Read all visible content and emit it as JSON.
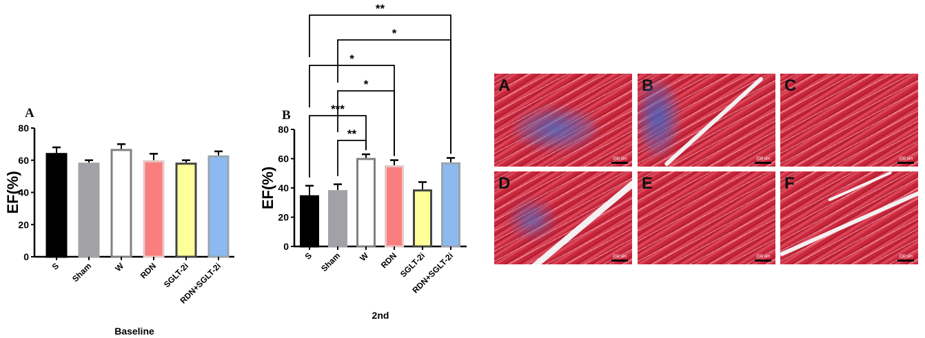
{
  "chart_data": [
    {
      "type": "bar",
      "panel_label": "A",
      "title": "",
      "xlabel": "Baseline",
      "ylabel": "EF(%)",
      "ylim": [
        0,
        80
      ],
      "yticks": [
        0,
        20,
        40,
        60,
        80
      ],
      "categories": [
        "S",
        "Sham",
        "W",
        "RDN",
        "SGLT-2i",
        "RDN+SGLT-2i"
      ],
      "values": [
        64.5,
        58.5,
        67,
        60,
        58.5,
        63
      ],
      "error_upper": [
        68,
        60,
        70,
        64,
        60,
        65.5
      ],
      "colors": [
        "#000000",
        "#a2a2a6",
        "#ffffff",
        "#f97f7f",
        "#ffff99",
        "#8cbaf0"
      ],
      "borders": [
        "#000000",
        "#a2a2a6",
        "#808080",
        "#e8c8c8",
        "#444444",
        "#9aa4b0"
      ],
      "grid": false
    },
    {
      "type": "bar",
      "panel_label": "B",
      "title": "",
      "xlabel": "2nd",
      "ylabel": "EF(%)",
      "ylim": [
        0,
        80
      ],
      "yticks": [
        0,
        20,
        40,
        60,
        80
      ],
      "categories": [
        "S",
        "Sham",
        "W",
        "RDN",
        "SGLT-2i",
        "RDN+SGLT-2i"
      ],
      "values": [
        35,
        38.5,
        60.5,
        55.5,
        39,
        57.5
      ],
      "error_upper": [
        41.5,
        42.5,
        63,
        59,
        44,
        60.5
      ],
      "colors": [
        "#000000",
        "#a2a2a6",
        "#ffffff",
        "#f97f7f",
        "#ffff99",
        "#8cbaf0"
      ],
      "borders": [
        "#000000",
        "#a2a2a6",
        "#808080",
        "#e8c8c8",
        "#444444",
        "#9aa4b0"
      ],
      "grid": false,
      "significance": [
        {
          "from": "S",
          "to": "RDN+SGLT-2i",
          "label": "**"
        },
        {
          "from": "Sham",
          "to": "RDN+SGLT-2i",
          "label": "*"
        },
        {
          "from": "S",
          "to": "RDN",
          "label": "*"
        },
        {
          "from": "Sham",
          "to": "RDN",
          "label": "*"
        },
        {
          "from": "S",
          "to": "W",
          "label": "***"
        },
        {
          "from": "Sham",
          "to": "W",
          "label": "**"
        }
      ]
    }
  ],
  "histology": {
    "panels": [
      {
        "letter": "A",
        "scale": "200 um"
      },
      {
        "letter": "B",
        "scale": "200 um"
      },
      {
        "letter": "C",
        "scale": "200 um"
      },
      {
        "letter": "D",
        "scale": "200 um"
      },
      {
        "letter": "E",
        "scale": "200 um"
      },
      {
        "letter": "F",
        "scale": "200 um"
      }
    ]
  }
}
